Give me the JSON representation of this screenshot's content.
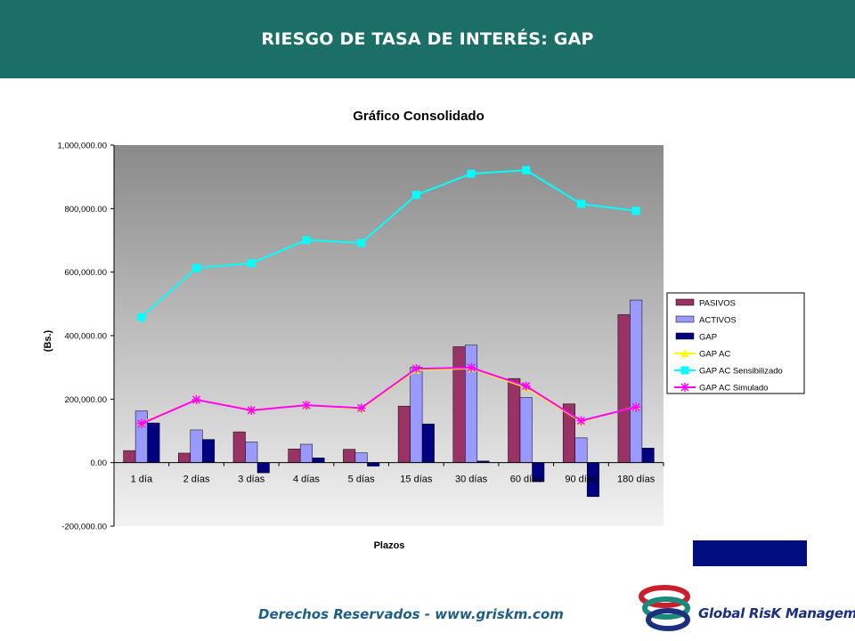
{
  "header": {
    "title": "RIESGO DE TASA DE INTERÉS: GAP"
  },
  "footer": {
    "text": "Derechos Reservados - www.griskm.com"
  },
  "logo": {
    "text": "Global RisK Management"
  },
  "colors": {
    "header_bg": "#1b6f66",
    "plot_bg_top": "#8a8a8a",
    "plot_bg_bottom": "#f2f2f2",
    "pasivos": "#993366",
    "activos": "#9999ff",
    "gap": "#000080",
    "gap_ac": "#ffff00",
    "gap_ac_sens": "#00ffff",
    "gap_ac_sim": "#ff00ff",
    "blue_box": "#000e80"
  },
  "chart_data": {
    "type": "bar",
    "title": "Gráfico Consolidado",
    "xlabel": "Plazos",
    "ylabel": "(Bs.)",
    "ylim": [
      -200000,
      1000000
    ],
    "yticks": [
      -200000,
      0,
      200000,
      400000,
      600000,
      800000,
      1000000
    ],
    "ytick_labels": [
      "-200,000.00",
      "0.00",
      "200,000.00",
      "400,000.00",
      "600,000.00",
      "800,000.00",
      "1,000,000.00"
    ],
    "categories": [
      "1 día",
      "2 días",
      "3 días",
      "4 días",
      "5 días",
      "15 días",
      "30 días",
      "60 días",
      "90 días",
      "180 días"
    ],
    "legend_position": "right",
    "grid": false,
    "series": [
      {
        "name": "PASIVOS",
        "type": "bar",
        "color": "#993366",
        "values": [
          38000,
          30000,
          97000,
          43000,
          42000,
          178000,
          365000,
          265000,
          185000,
          466000
        ]
      },
      {
        "name": "ACTIVOS",
        "type": "bar",
        "color": "#9999ff",
        "values": [
          163000,
          103000,
          65000,
          58000,
          31000,
          300000,
          370000,
          205000,
          78000,
          512000
        ]
      },
      {
        "name": "GAP",
        "type": "bar",
        "color": "#000080",
        "values": [
          125000,
          73000,
          -32000,
          15000,
          -11000,
          122000,
          5000,
          -60000,
          -107000,
          46000
        ]
      },
      {
        "name": "GAP AC",
        "type": "line",
        "color": "#ffff00",
        "marker": "triangle",
        "values": [
          125000,
          198000,
          166000,
          181000,
          170000,
          292000,
          297000,
          237000,
          130000,
          176000
        ]
      },
      {
        "name": "GAP AC Sensibilizado",
        "type": "line",
        "color": "#00ffff",
        "marker": "square",
        "values": [
          458000,
          613000,
          628000,
          701000,
          692000,
          843000,
          910000,
          921000,
          815000,
          793000
        ]
      },
      {
        "name": "GAP AC Simulado",
        "type": "line",
        "color": "#ff00ff",
        "marker": "star",
        "values": [
          123000,
          198000,
          165000,
          181000,
          172000,
          296000,
          299000,
          241000,
          132000,
          175000
        ]
      }
    ]
  }
}
